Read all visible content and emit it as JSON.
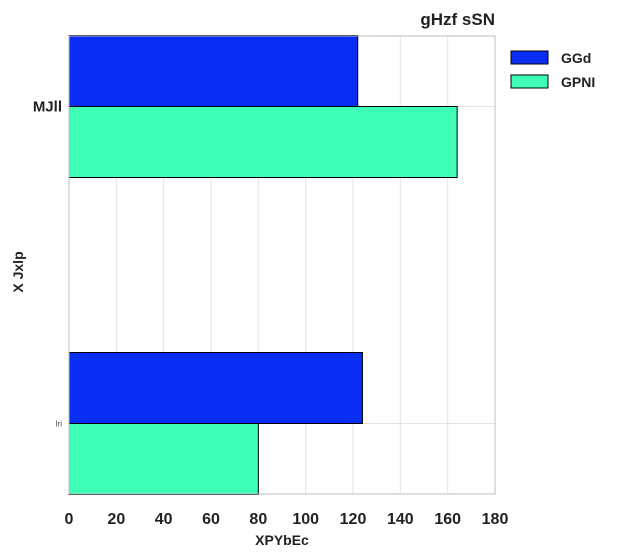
{
  "chart_data": {
    "type": "bar",
    "orientation": "horizontal",
    "title": "gHzf sSN",
    "xlabel": "XPYbEc",
    "ylabel": "X Jxlp",
    "categories": [
      "MJll",
      "lri"
    ],
    "series": [
      {
        "name": "GGd",
        "values": [
          122,
          124
        ],
        "color": "#0a2df5"
      },
      {
        "name": "GPNI",
        "values": [
          164,
          80
        ],
        "color": "#3dffb5"
      }
    ],
    "xlim": [
      0,
      180
    ],
    "xticks": [
      "0",
      "20",
      "40",
      "60",
      "80",
      "100",
      "120",
      "140",
      "160",
      "180"
    ],
    "grid": true,
    "legend_position": "outside-top-right"
  }
}
